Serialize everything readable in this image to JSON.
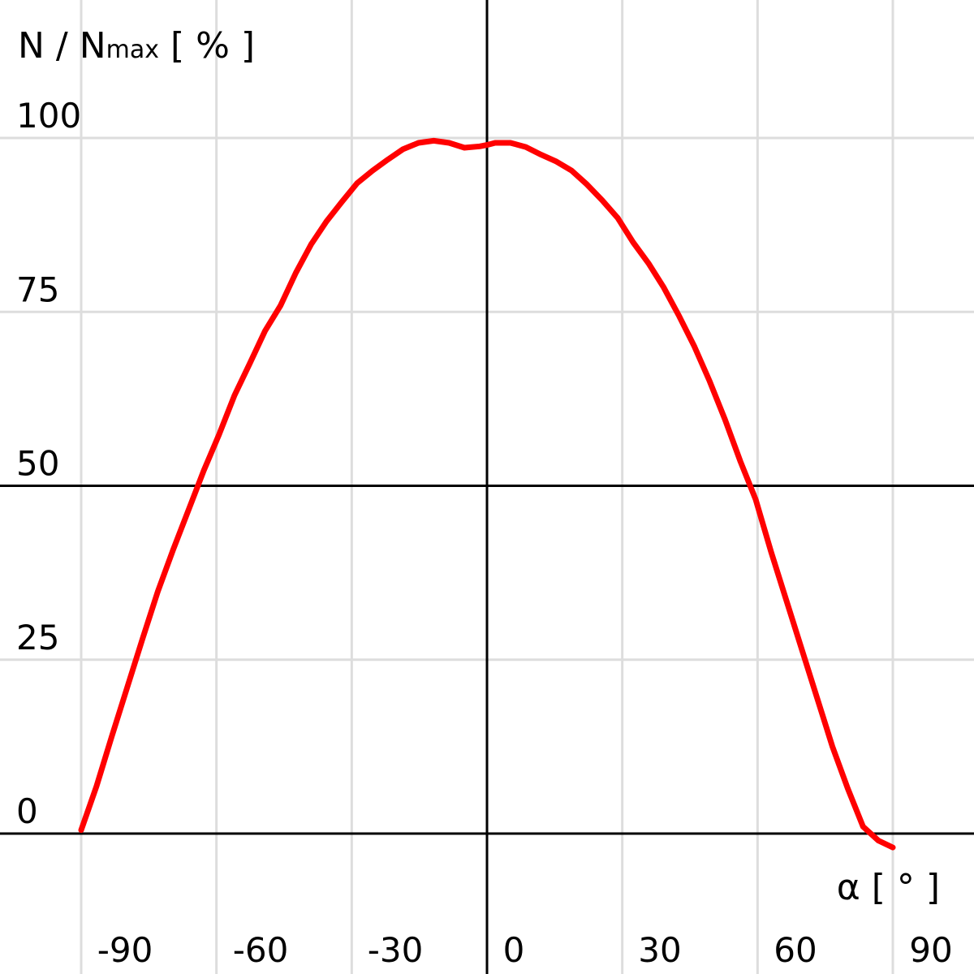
{
  "chart_data": {
    "type": "line",
    "ylabel": {
      "main": "N / N",
      "subscript": "max",
      "unit": " [ % ]"
    },
    "xlabel": "α [ ° ]",
    "x_ticks": [
      -90,
      -60,
      -30,
      0,
      30,
      60,
      90
    ],
    "x_tick_labels": [
      "-90",
      "-60",
      "-30",
      "0",
      "30",
      "60",
      "90"
    ],
    "y_ticks": [
      0,
      25,
      50,
      75,
      100
    ],
    "y_tick_labels": [
      "0",
      "25",
      "50",
      "75",
      "100"
    ],
    "xlim": [
      -108,
      108
    ],
    "ylim": [
      -20,
      115
    ],
    "grid": true,
    "grid_lines_x": [
      -90,
      -60,
      -30,
      0,
      30,
      60,
      90
    ],
    "grid_lines_y": [
      0,
      25,
      50,
      75,
      100
    ],
    "series": [
      {
        "color": "#ff0000",
        "x": [
          -90,
          -86.6,
          -83.2,
          -79.8,
          -76.4,
          -73.0,
          -69.6,
          -66.2,
          -62.8,
          -59.4,
          -56.0,
          -52.6,
          -49.2,
          -45.8,
          -42.4,
          -39.0,
          -35.6,
          -32.2,
          -28.8,
          -25.4,
          -22.0,
          -18.6,
          -15.2,
          -11.8,
          -8.4,
          -5.0,
          -1.6,
          0,
          1.8,
          5.2,
          8.6,
          12.0,
          15.4,
          18.8,
          22.2,
          25.6,
          29.0,
          32.4,
          35.8,
          39.2,
          42.6,
          46.0,
          49.4,
          52.8,
          56.2,
          59.6,
          63.0,
          66.4,
          69.8,
          73.2,
          76.6,
          80.0,
          83.4,
          86.8,
          90.0
        ],
        "y": [
          0.5,
          6.8,
          14.0,
          21.0,
          28.0,
          34.8,
          40.8,
          46.5,
          52.2,
          57.4,
          63.0,
          67.6,
          72.3,
          75.9,
          80.6,
          84.7,
          88.0,
          90.8,
          93.5,
          95.3,
          96.9,
          98.4,
          99.3,
          99.6,
          99.3,
          98.6,
          98.8,
          99.0,
          99.3,
          99.3,
          98.7,
          97.6,
          96.6,
          95.3,
          93.3,
          91.0,
          88.5,
          85.0,
          82.0,
          78.5,
          74.4,
          70.0,
          65.0,
          59.5,
          53.5,
          48.0,
          40.5,
          33.5,
          26.5,
          19.5,
          12.5,
          6.5,
          1.0,
          -1.0,
          -2.0
        ]
      }
    ]
  }
}
